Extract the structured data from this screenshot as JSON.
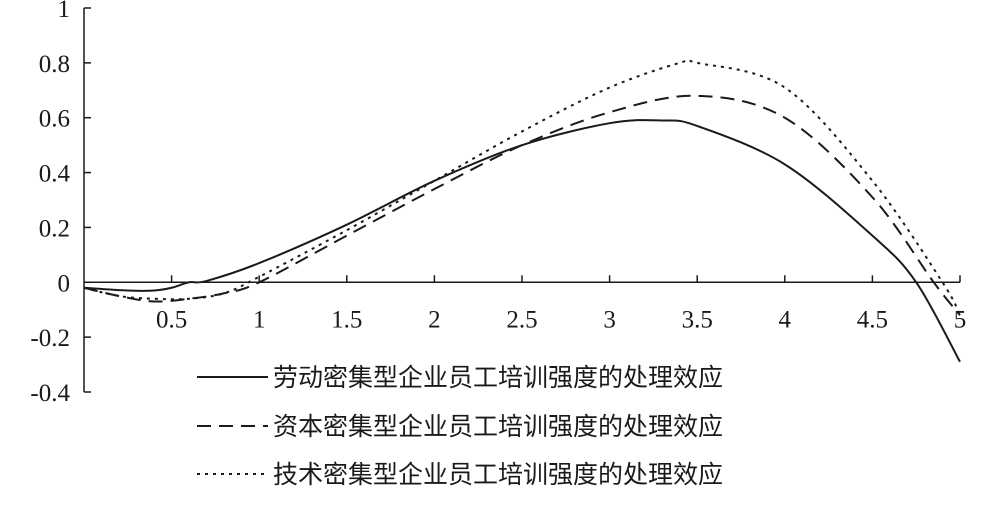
{
  "chart_data": {
    "type": "line",
    "title": "",
    "xlabel": "",
    "ylabel": "",
    "xlim": [
      0,
      5
    ],
    "ylim": [
      -0.4,
      1
    ],
    "x_ticks": [
      0.5,
      1,
      1.5,
      2,
      2.5,
      3,
      3.5,
      4,
      4.5,
      5
    ],
    "x_tick_labels": [
      "0.5",
      "1",
      "1.5",
      "2",
      "2.5",
      "3",
      "3.5",
      "4",
      "4.5",
      "5"
    ],
    "y_ticks": [
      1,
      0.8,
      0.6,
      0.4,
      0.2,
      0,
      -0.2,
      -0.4
    ],
    "y_tick_labels": [
      "1",
      "0.8",
      "0.6",
      "0.4",
      "0.2",
      "0",
      "-0.2",
      "-0.4"
    ],
    "grid": false,
    "legend_position": "bottom-right",
    "series": [
      {
        "name": "劳动密集型企业员工培训强度的处理效应",
        "line_style": "solid",
        "color": "#1a1a1a",
        "x": [
          0,
          0.25,
          0.4,
          0.5,
          0.6,
          0.7,
          1,
          1.5,
          2,
          2.5,
          3,
          3.3,
          3.5,
          4,
          4.5,
          4.75,
          5
        ],
        "y": [
          -0.02,
          -0.03,
          -0.03,
          -0.02,
          0,
          0.005,
          0.07,
          0.21,
          0.37,
          0.5,
          0.58,
          0.59,
          0.57,
          0.43,
          0.17,
          0,
          -0.29
        ]
      },
      {
        "name": "资本密集型企业员工培训强度的处理效应",
        "line_style": "dashed",
        "color": "#1a1a1a",
        "x": [
          0,
          0.2,
          0.4,
          0.6,
          0.8,
          1,
          1.5,
          2,
          2.5,
          3,
          3.5,
          4,
          4.5,
          4.85,
          5
        ],
        "y": [
          -0.02,
          -0.05,
          -0.07,
          -0.06,
          -0.04,
          0.0,
          0.17,
          0.34,
          0.5,
          0.62,
          0.68,
          0.6,
          0.31,
          0,
          -0.12
        ]
      },
      {
        "name": "技术密集型企业员工培训强度的处理效应",
        "line_style": "dotted",
        "color": "#1a1a1a",
        "x": [
          0,
          0.2,
          0.4,
          0.6,
          0.8,
          1,
          1.5,
          2,
          2.5,
          3,
          3.4,
          3.5,
          4,
          4.5,
          4.9,
          5
        ],
        "y": [
          -0.02,
          -0.05,
          -0.06,
          -0.06,
          -0.04,
          0.02,
          0.19,
          0.37,
          0.55,
          0.71,
          0.8,
          0.8,
          0.71,
          0.37,
          0,
          -0.12
        ]
      }
    ]
  }
}
